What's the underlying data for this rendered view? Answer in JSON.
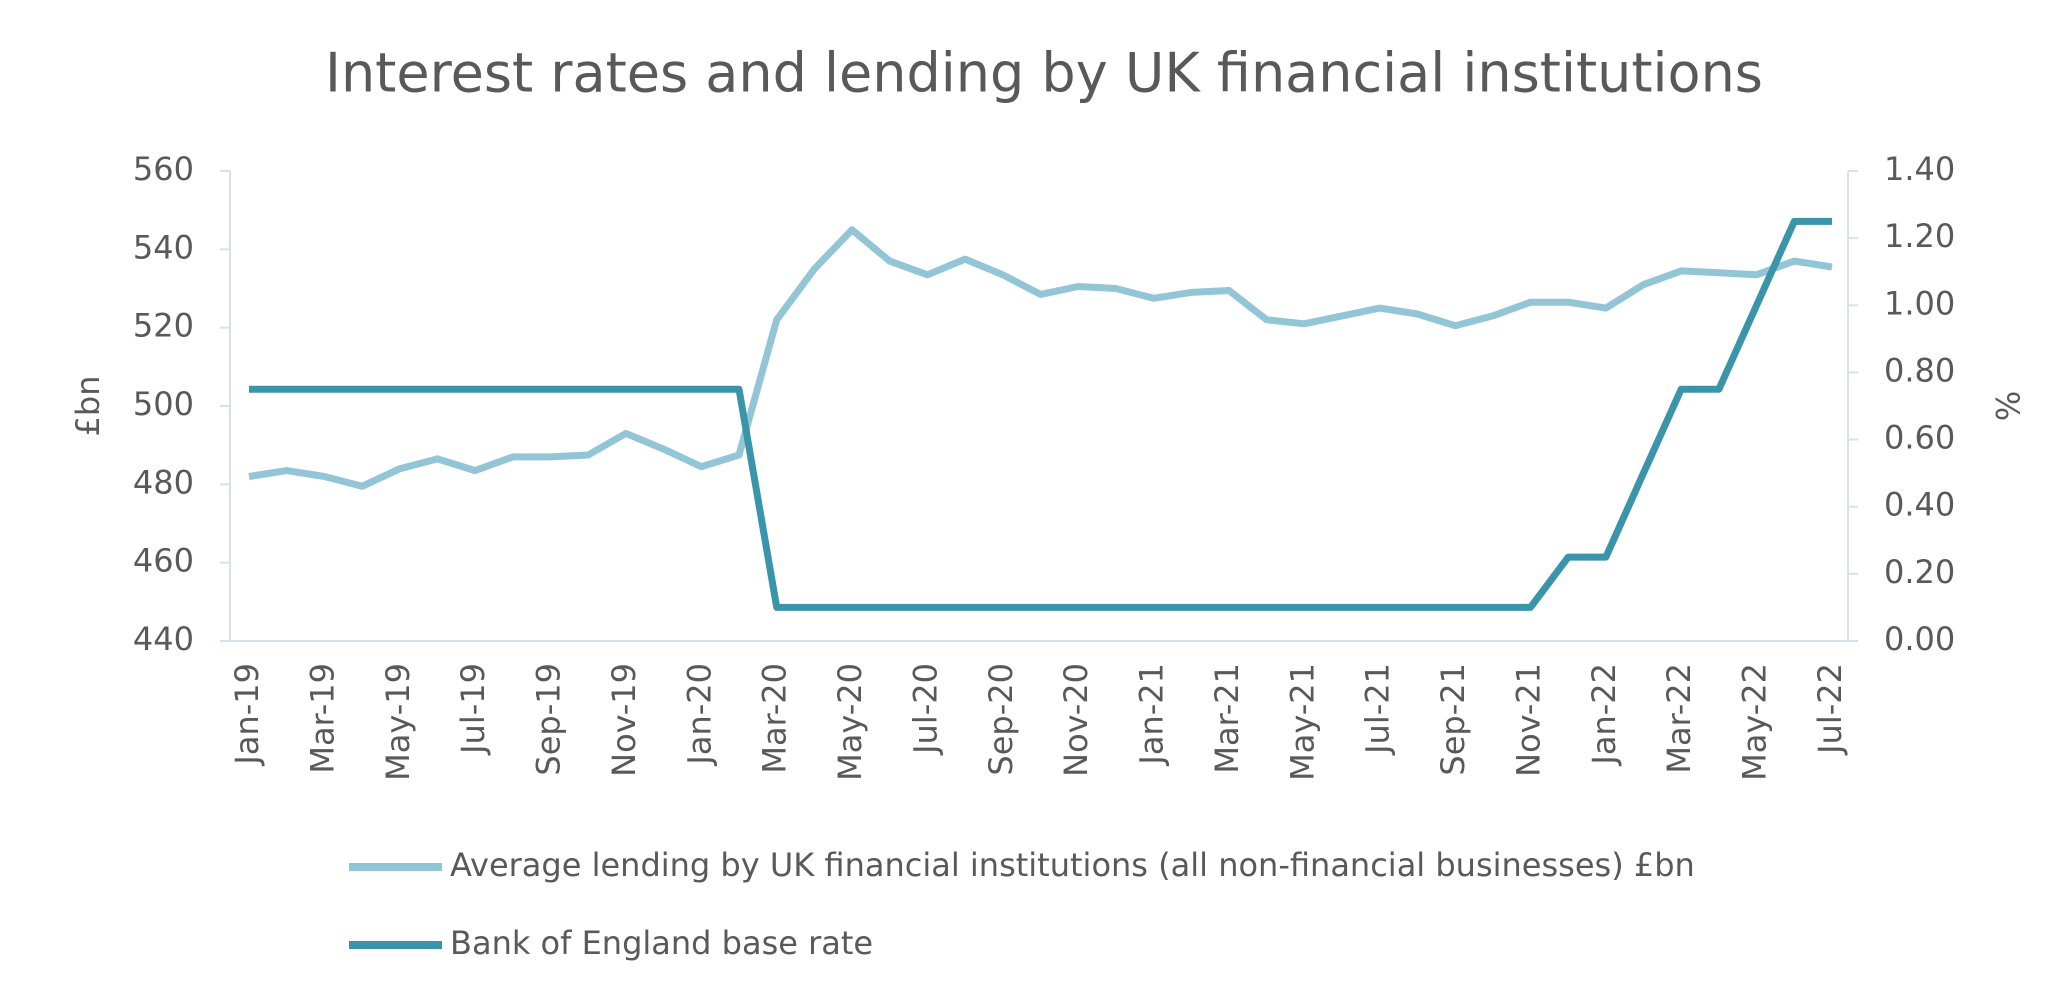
{
  "chart_data": {
    "type": "line",
    "title": "Interest rates and lending by UK financial institutions",
    "y_label": "£bn",
    "y2_label": "%",
    "categories": [
      "Jan-19",
      null,
      "Mar-19",
      null,
      "May-19",
      null,
      "Jul-19",
      null,
      "Sep-19",
      null,
      "Nov-19",
      null,
      "Jan-20",
      null,
      "Mar-20",
      null,
      "May-20",
      null,
      "Jul-20",
      null,
      "Sep-20",
      null,
      "Nov-20",
      null,
      "Jan-21",
      null,
      "Mar-21",
      null,
      "May-21",
      null,
      "Jul-21",
      null,
      "Sep-21",
      null,
      "Nov-21",
      null,
      "Jan-22",
      null,
      "Mar-22",
      null,
      "May-22",
      null,
      "Jul-22"
    ],
    "series": [
      {
        "name": "Average lending by UK financial institutions (all non-financial businesses) £bn",
        "color": "#92c5d6",
        "values": [
          482,
          483.5,
          482,
          479.5,
          484,
          486.5,
          483.5,
          487,
          487,
          487.5,
          493,
          489,
          484.5,
          487.5,
          522,
          535,
          545,
          537,
          533.5,
          537.5,
          533.5,
          528.5,
          530.5,
          530,
          527.5,
          529,
          529.5,
          522,
          521,
          523,
          525,
          523.5,
          520.5,
          523,
          526.5,
          526.5,
          525,
          531,
          534.5,
          534,
          533.5,
          537,
          535.5
        ]
      },
      {
        "name": "Bank of England base rate",
        "color": "#3a95ab",
        "axis": "y2",
        "values": [
          0.75,
          0.75,
          0.75,
          0.75,
          0.75,
          0.75,
          0.75,
          0.75,
          0.75,
          0.75,
          0.75,
          0.75,
          0.75,
          0.75,
          0.1,
          0.1,
          0.1,
          0.1,
          0.1,
          0.1,
          0.1,
          0.1,
          0.1,
          0.1,
          0.1,
          0.1,
          0.1,
          0.1,
          0.1,
          0.1,
          0.1,
          0.1,
          0.1,
          0.1,
          0.1,
          0.25,
          0.25,
          0.5,
          0.75,
          0.75,
          1.0,
          1.25,
          1.25
        ]
      }
    ],
    "ylim": [
      440,
      560
    ],
    "yticks": [
      440,
      460,
      480,
      500,
      520,
      540,
      560
    ],
    "y2lim": [
      0,
      1.4
    ],
    "y2ticks": [
      {
        "value": 0,
        "label": "0.00"
      },
      {
        "value": 0.2,
        "label": "0.20"
      },
      {
        "value": 0.4,
        "label": "0.40"
      },
      {
        "value": 0.6,
        "label": "0.60"
      },
      {
        "value": 0.8,
        "label": "0.80"
      },
      {
        "value": 1.0,
        "label": "1.00"
      },
      {
        "value": 1.2,
        "label": "1.20"
      },
      {
        "value": 1.4,
        "label": "1.40"
      }
    ],
    "legend": "bottom"
  }
}
